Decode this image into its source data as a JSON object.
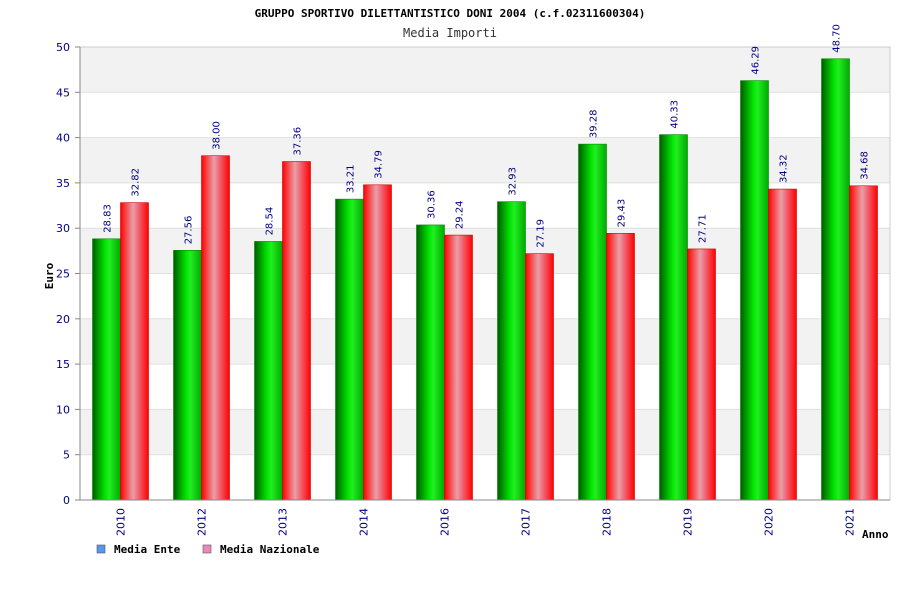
{
  "chart_data": {
    "type": "bar",
    "title": "GRUPPO SPORTIVO DILETTANTISTICO DONI 2004 (c.f.02311600304)",
    "subtitle": "Media Importi",
    "xlabel": "Anno",
    "ylabel": "Euro",
    "ylim": [
      0,
      50
    ],
    "yticks": [
      "0",
      "5",
      "10",
      "15",
      "20",
      "25",
      "30",
      "35",
      "40",
      "45",
      "50"
    ],
    "categories": [
      "2010",
      "2012",
      "2013",
      "2014",
      "2016",
      "2017",
      "2018",
      "2019",
      "2020",
      "2021"
    ],
    "series": [
      {
        "name": "Media Ente",
        "values": [
          28.83,
          27.56,
          28.54,
          33.21,
          30.36,
          32.93,
          39.28,
          40.33,
          46.29,
          48.7
        ],
        "labels": [
          "28.83",
          "27.56",
          "28.54",
          "33.21",
          "30.36",
          "32.93",
          "39.28",
          "40.33",
          "46.29",
          "48.70"
        ],
        "color": "#00cc00",
        "legend_color": "#5599ee"
      },
      {
        "name": "Media Nazionale",
        "values": [
          32.82,
          38.0,
          37.36,
          34.79,
          29.24,
          27.19,
          29.43,
          27.71,
          34.32,
          34.68
        ],
        "labels": [
          "32.82",
          "38.00",
          "37.36",
          "34.79",
          "29.24",
          "27.19",
          "29.43",
          "27.71",
          "34.32",
          "34.68"
        ],
        "color": "#ff0000",
        "legend_color": "#ee88bb"
      }
    ],
    "legend_position": "bottom-left",
    "grid": true
  }
}
